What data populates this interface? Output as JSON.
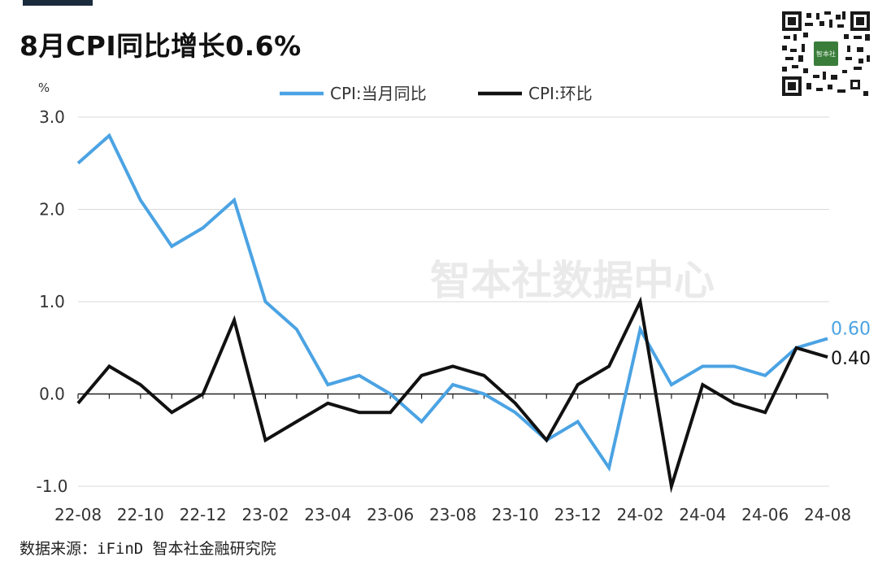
{
  "title": "8月CPI同比增长0.6%",
  "source": "数据来源：iFinD 智本社金融研究院",
  "watermark": "智本社数据中心",
  "qr_center_text": "智本社",
  "chart_data": {
    "type": "line",
    "ylabel": "%",
    "ylim": [
      -1.0,
      3.0
    ],
    "yticks": [
      "3.0",
      "2.0",
      "1.0",
      "0.0",
      "-1.0"
    ],
    "ytick_values": [
      3.0,
      2.0,
      1.0,
      0.0,
      -1.0
    ],
    "xtick_labels": [
      "22-08",
      "22-10",
      "22-12",
      "23-02",
      "23-04",
      "23-06",
      "23-08",
      "23-10",
      "23-12",
      "24-02",
      "24-04",
      "24-06",
      "24-08"
    ],
    "x": [
      "22-08",
      "22-09",
      "22-10",
      "22-11",
      "22-12",
      "23-01",
      "23-02",
      "23-03",
      "23-04",
      "23-05",
      "23-06",
      "23-07",
      "23-08",
      "23-09",
      "23-10",
      "23-11",
      "23-12",
      "24-01",
      "24-02",
      "24-03",
      "24-04",
      "24-05",
      "24-06",
      "24-07",
      "24-08"
    ],
    "grid": "horizontal",
    "legend_position": "top-center",
    "series": [
      {
        "name": "CPI:当月同比",
        "color": "#4ba3e3",
        "values": [
          2.5,
          2.8,
          2.1,
          1.6,
          1.8,
          2.1,
          1.0,
          0.7,
          0.1,
          0.2,
          0.0,
          -0.3,
          0.1,
          0.0,
          -0.2,
          -0.5,
          -0.3,
          -0.8,
          0.7,
          0.1,
          0.3,
          0.3,
          0.2,
          0.5,
          0.6
        ],
        "end_label": "0.60"
      },
      {
        "name": "CPI:环比",
        "color": "#111111",
        "values": [
          -0.1,
          0.3,
          0.1,
          -0.2,
          0.0,
          0.8,
          -0.5,
          -0.3,
          -0.1,
          -0.2,
          -0.2,
          0.2,
          0.3,
          0.2,
          -0.1,
          -0.5,
          0.1,
          0.3,
          1.0,
          -1.0,
          0.1,
          -0.1,
          -0.2,
          0.5,
          0.4
        ],
        "end_label": "0.40"
      }
    ]
  }
}
